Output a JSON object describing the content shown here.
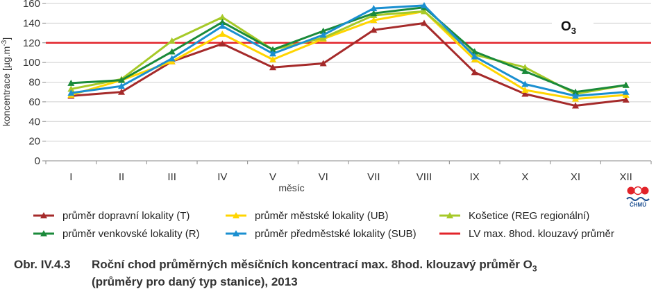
{
  "chart_data": {
    "type": "line",
    "title": "",
    "xlabel": "měsíc",
    "ylabel": "koncentrace [µg.m-3]",
    "ylabel_parts": {
      "main": "koncentrace [µg.m",
      "sup": "-3",
      "end": "]"
    },
    "ylim": [
      0,
      160
    ],
    "yticks": [
      0,
      20,
      40,
      60,
      80,
      100,
      120,
      140,
      160
    ],
    "grid": true,
    "legend_position": "bottom",
    "categories": [
      "I",
      "II",
      "III",
      "IV",
      "V",
      "VI",
      "VII",
      "VIII",
      "IX",
      "X",
      "XI",
      "XII"
    ],
    "series": [
      {
        "key": "T",
        "name": "průměr dopravní lokality (T)",
        "color": "#a52a2a",
        "values": [
          66,
          70,
          101,
          119,
          95,
          99,
          133,
          140,
          90,
          68,
          56,
          62
        ]
      },
      {
        "key": "UB",
        "name": "průměr městské lokality (UB)",
        "color": "#ffd500",
        "values": [
          67,
          82,
          101,
          129,
          103,
          124,
          143,
          152,
          103,
          72,
          63,
          67
        ]
      },
      {
        "key": "REG",
        "name": "Košetice (REG regionální)",
        "color": "#a6c928",
        "values": [
          73,
          83,
          122,
          146,
          113,
          125,
          148,
          152,
          108,
          95,
          68,
          77
        ]
      },
      {
        "key": "R",
        "name": "průměr venkovské lokality (R)",
        "color": "#1a8a3a",
        "values": [
          79,
          82,
          111,
          141,
          113,
          132,
          150,
          156,
          111,
          91,
          70,
          77
        ]
      },
      {
        "key": "SUB",
        "name": "průměr předměstské lokality (SUB)",
        "color": "#1a8fd0",
        "values": [
          69,
          76,
          104,
          137,
          109,
          128,
          155,
          158,
          106,
          78,
          66,
          70
        ]
      }
    ],
    "limit_line": {
      "name": "LV max. 8hod. klouzavý průměr",
      "value": 120,
      "color": "#e2232a"
    },
    "annotation": {
      "main": "O",
      "sub": "3"
    }
  },
  "caption": {
    "number": "Obr. IV.4.3",
    "line1": "Roční chod průměrných měsíčních koncentrací max. 8hod. klouzavý průměr O",
    "line1_sub": "3",
    "line2": "(průměry pro daný typ stanice), 2013"
  },
  "logo": {
    "text": "ČHMÚ"
  }
}
